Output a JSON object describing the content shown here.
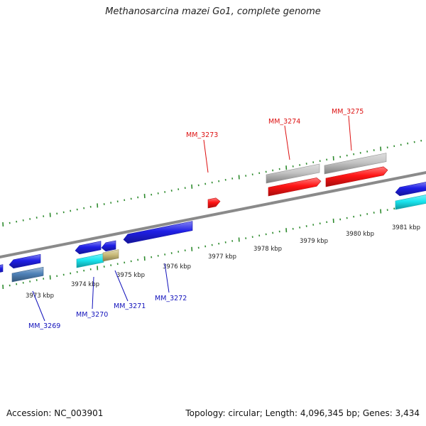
{
  "title": "Methanosarcina mazei Go1, complete genome",
  "footer": {
    "accession": "Accession: NC_003901",
    "summary": "Topology: circular; Length: 4,096,345 bp; Genes: 3,434"
  },
  "colors": {
    "backbone": "#8a8a8a",
    "ticks": "#2e8b2e",
    "gene_blue": "#1f1fe6",
    "gene_red": "#ff1414",
    "gene_gray": "#c4c4c4",
    "gene_cyan": "#19e6f0",
    "gene_steel": "#4f82b8",
    "gene_khaki": "#c9bb78",
    "label_red": "#dd1111",
    "label_blue": "#1111bb"
  },
  "scale_labels": [
    "3973 kbp",
    "3974 kbp",
    "3975 kbp",
    "3976 kbp",
    "3977 kbp",
    "3978 kbp",
    "3979 kbp",
    "3980 kbp",
    "3981 kbp"
  ],
  "gene_labels": {
    "forward": [
      "MM_3273",
      "MM_3274",
      "MM_3275"
    ],
    "reverse": [
      "MM_3269",
      "MM_3270",
      "MM_3271",
      "MM_3272"
    ]
  }
}
